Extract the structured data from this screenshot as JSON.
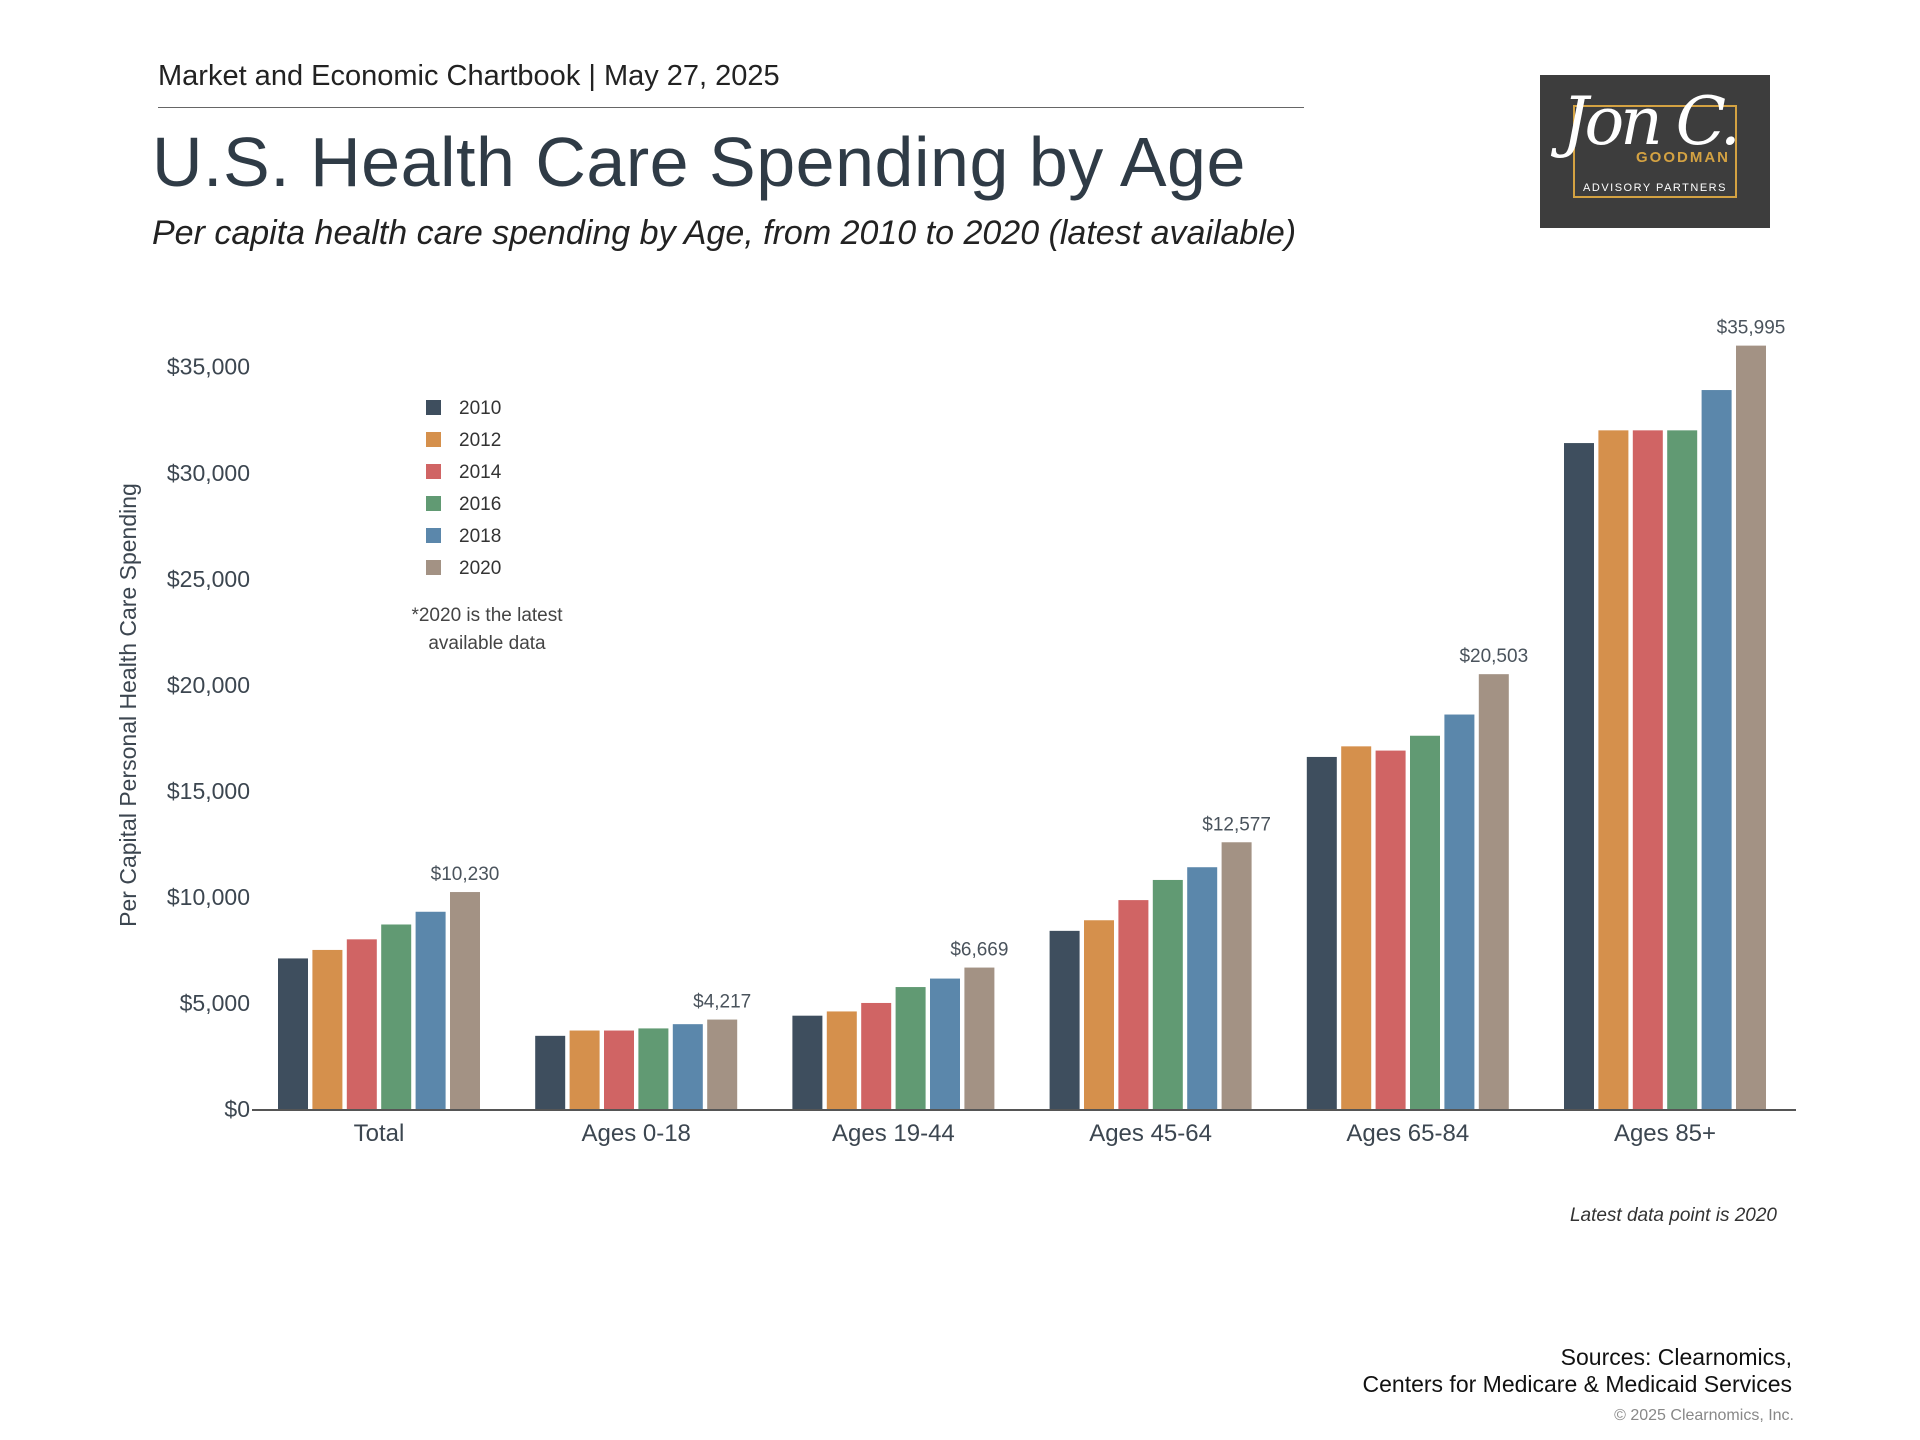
{
  "header": {
    "kicker": "Market and Economic Chartbook | May 27, 2025",
    "title": "U.S. Health Care Spending by Age",
    "subtitle": "Per capita health care spending by Age, from 2010 to 2020 (latest available)"
  },
  "logo": {
    "signature": "Jon C.",
    "brand": "GOODMAN",
    "tagline": "ADVISORY PARTNERS"
  },
  "chart_data": {
    "type": "bar",
    "categories": [
      "Total",
      "Ages 0-18",
      "Ages 19-44",
      "Ages 45-64",
      "Ages 65-84",
      "Ages 85+"
    ],
    "series": [
      {
        "name": "2010",
        "color": "#3e4e5e",
        "values": [
          7100,
          3450,
          4400,
          8400,
          16600,
          31400
        ]
      },
      {
        "name": "2012",
        "color": "#d5904c",
        "values": [
          7500,
          3700,
          4600,
          8900,
          17100,
          32000
        ]
      },
      {
        "name": "2014",
        "color": "#d06464",
        "values": [
          8000,
          3700,
          5000,
          9850,
          16900,
          32000
        ]
      },
      {
        "name": "2016",
        "color": "#619a73",
        "values": [
          8700,
          3800,
          5750,
          10800,
          17600,
          32000
        ]
      },
      {
        "name": "2018",
        "color": "#5b87ab",
        "values": [
          9300,
          4000,
          6150,
          11400,
          18600,
          33900
        ]
      },
      {
        "name": "2020",
        "color": "#a39284",
        "values": [
          10230,
          4217,
          6669,
          12577,
          20503,
          35995
        ]
      }
    ],
    "data_labels": [
      "$10,230",
      "$4,217",
      "$6,669",
      "$12,577",
      "$20,503",
      "$35,995"
    ],
    "ylabel": "Per Capital Personal Health Care Spending",
    "xlabel": "",
    "yticks": [
      0,
      5000,
      10000,
      15000,
      20000,
      25000,
      30000,
      35000
    ],
    "ytick_labels": [
      "$0",
      "$5,000",
      "$10,000",
      "$15,000",
      "$20,000",
      "$25,000",
      "$30,000",
      "$35,000"
    ],
    "ylim": [
      0,
      35995
    ],
    "grid": false,
    "legend_position": "top-left",
    "legend_note": [
      "*2020 is the latest",
      "available data"
    ],
    "footnote": "Latest data point is 2020"
  },
  "footer": {
    "sources_line1": "Sources: Clearnomics,",
    "sources_line2": "Centers for Medicare & Medicaid Services",
    "copyright": "© 2025 Clearnomics, Inc."
  }
}
